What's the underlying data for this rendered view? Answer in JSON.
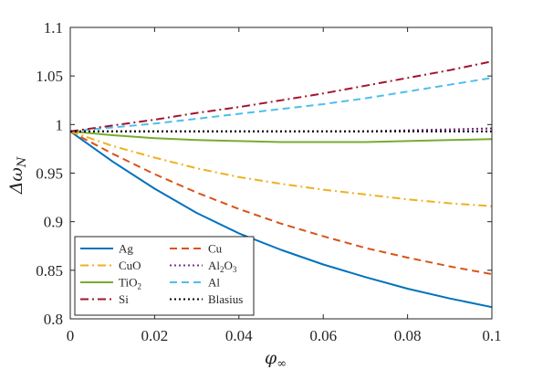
{
  "chart_data": {
    "type": "line",
    "xlabel": "φ",
    "xlabel_subscript": "∞",
    "ylabel": "Δω",
    "ylabel_subscript": "N",
    "xlim": [
      0,
      0.1
    ],
    "ylim": [
      0.8,
      1.1
    ],
    "xticks": [
      0,
      0.02,
      0.04,
      0.06,
      0.08,
      0.1
    ],
    "xtick_labels": [
      "0",
      "0.02",
      "0.04",
      "0.06",
      "0.08",
      "0.1"
    ],
    "yticks": [
      0.8,
      0.85,
      0.9,
      0.95,
      1,
      1.05,
      1.1
    ],
    "ytick_labels": [
      "0.8",
      "0.85",
      "0.9",
      "0.95",
      "1",
      "1.05",
      "1.1"
    ],
    "grid": false,
    "legend_position": "bottom-left",
    "legend_columns": 2,
    "x": [
      0,
      0.01,
      0.02,
      0.03,
      0.04,
      0.05,
      0.06,
      0.07,
      0.08,
      0.09,
      0.1
    ],
    "series": [
      {
        "name": "Ag",
        "label_main": "Ag",
        "label_sub": "",
        "color": "#0072BD",
        "dash": "solid",
        "values": [
          0.993,
          0.962,
          0.934,
          0.909,
          0.888,
          0.871,
          0.856,
          0.843,
          0.831,
          0.821,
          0.812
        ]
      },
      {
        "name": "Cu",
        "label_main": "Cu",
        "label_sub": "",
        "color": "#D95319",
        "dash": "dashed",
        "values": [
          0.993,
          0.97,
          0.949,
          0.93,
          0.913,
          0.898,
          0.885,
          0.873,
          0.863,
          0.854,
          0.846
        ]
      },
      {
        "name": "CuO",
        "label_main": "CuO",
        "label_sub": "",
        "color": "#EDB120",
        "dash": "dashdot",
        "values": [
          0.993,
          0.978,
          0.966,
          0.955,
          0.946,
          0.939,
          0.933,
          0.928,
          0.923,
          0.919,
          0.916
        ]
      },
      {
        "name": "Al2O3",
        "label_main": "Al",
        "label_sub": "2",
        "label_main2": "O",
        "label_sub2": "3",
        "color": "#7E2F8E",
        "dash": "dotted",
        "values": [
          0.993,
          0.993,
          0.993,
          0.993,
          0.993,
          0.993,
          0.993,
          0.993,
          0.994,
          0.995,
          0.996
        ]
      },
      {
        "name": "TiO2",
        "label_main": "TiO",
        "label_sub": "2",
        "color": "#77AC30",
        "dash": "solid",
        "values": [
          0.993,
          0.989,
          0.986,
          0.984,
          0.983,
          0.982,
          0.982,
          0.982,
          0.983,
          0.984,
          0.985
        ]
      },
      {
        "name": "Al",
        "label_main": "Al",
        "label_sub": "",
        "color": "#4DBEEE",
        "dash": "dashed",
        "values": [
          0.993,
          0.997,
          1.001,
          1.006,
          1.011,
          1.016,
          1.021,
          1.027,
          1.034,
          1.041,
          1.048
        ]
      },
      {
        "name": "Si",
        "label_main": "Si",
        "label_sub": "",
        "color": "#A2142F",
        "dash": "dashdot",
        "values": [
          0.993,
          0.999,
          1.005,
          1.012,
          1.018,
          1.025,
          1.032,
          1.04,
          1.048,
          1.056,
          1.065
        ]
      },
      {
        "name": "Blasius",
        "label_main": "Blasius",
        "label_sub": "",
        "color": "#000000",
        "dash": "dotted",
        "values": [
          0.993,
          0.993,
          0.993,
          0.993,
          0.993,
          0.993,
          0.993,
          0.993,
          0.993,
          0.993,
          0.993
        ]
      }
    ]
  }
}
